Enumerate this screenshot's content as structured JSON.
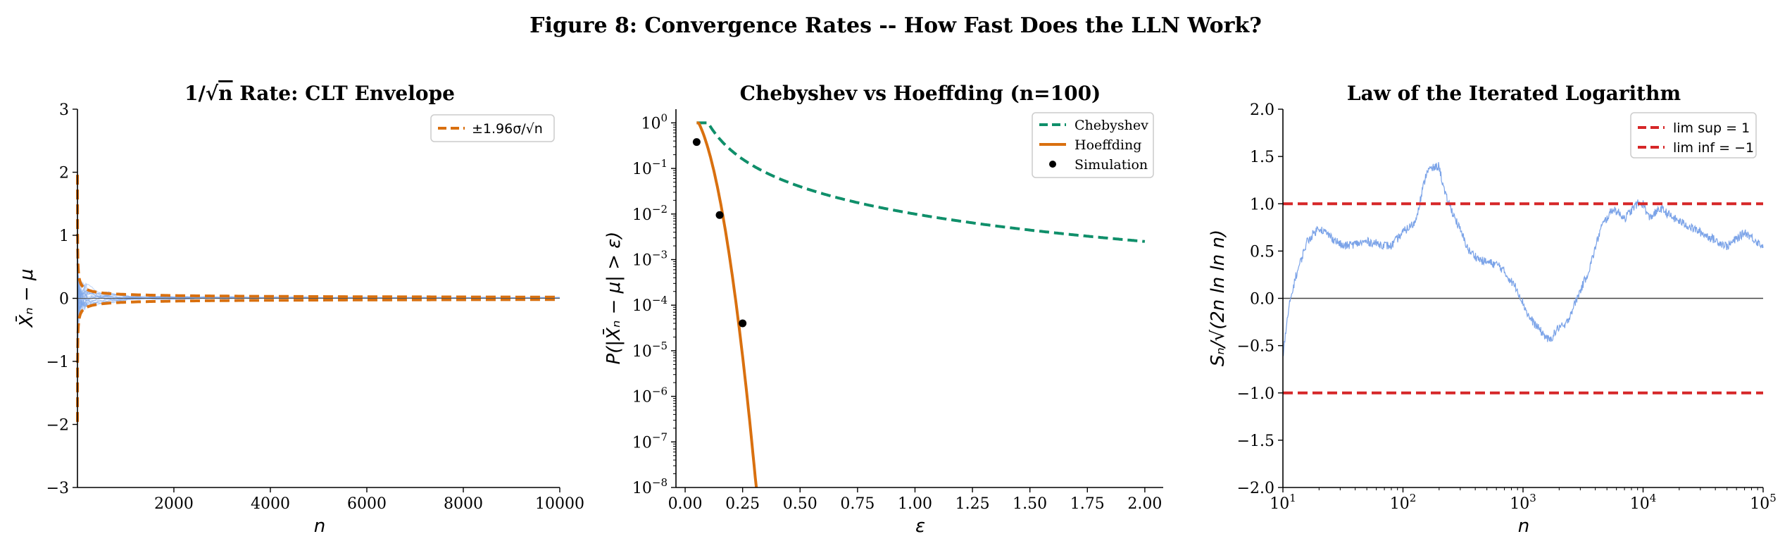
{
  "figure_title": "Figure 8: Convergence Rates -- How Fast Does the LLN Work?",
  "colors": {
    "envelope": "#d9700f",
    "paths": "#7ba3e8",
    "chebyshev": "#0f8f6a",
    "hoeffding": "#d9700f",
    "simulation": "#000000",
    "lil_bounds": "#d62728",
    "lil_path": "#7ba3e8",
    "zero_line": "#444444"
  },
  "chart_data": [
    {
      "type": "line",
      "title_parts": {
        "pre": "1/",
        "sqrt": "√",
        "over": "n",
        "post": " Rate: CLT Envelope"
      },
      "xlabel": "n",
      "ylabel": "X̄ₙ − μ",
      "xlim": [
        1,
        10000
      ],
      "ylim": [
        -3,
        3
      ],
      "xticks": [
        2000,
        4000,
        6000,
        8000,
        10000
      ],
      "xtick_labels": [
        "2000",
        "4000",
        "6000",
        "8000",
        "10000"
      ],
      "yticks": [
        -3,
        -2,
        -1,
        0,
        1,
        2,
        3
      ],
      "ytick_labels": [
        "−3",
        "−2",
        "−1",
        "0",
        "1",
        "2",
        "3"
      ],
      "legend": {
        "position": "top-right",
        "entries": [
          "±1.96σ/√n"
        ]
      },
      "envelope": {
        "name": "±1.96σ/√n",
        "sigma": 1,
        "z": 1.96
      },
      "sample_paths": {
        "count": 20
      }
    },
    {
      "type": "line",
      "title": "Chebyshev vs Hoeffding (n=100)",
      "xlabel": "ε",
      "ylabel": "P(|X̄ₙ − μ| > ε)",
      "xlim": [
        -0.04,
        2.08
      ],
      "ylim_log10": [
        -8,
        0.3
      ],
      "yscale": "log",
      "xticks": [
        0,
        0.25,
        0.5,
        0.75,
        1,
        1.25,
        1.5,
        1.75,
        2
      ],
      "xtick_labels": [
        "0.00",
        "0.25",
        "0.50",
        "0.75",
        "1.00",
        "1.25",
        "1.50",
        "1.75",
        "2.00"
      ],
      "ytick_exponents": [
        0,
        -1,
        -2,
        -3,
        -4,
        -5,
        -6,
        -7,
        -8
      ],
      "ytick_base": "10",
      "legend": {
        "position": "top-right",
        "entries": [
          "Chebyshev",
          "Hoeffding",
          "Simulation"
        ]
      },
      "series": [
        {
          "name": "Chebyshev",
          "formula": "min(1, 1/(n·ε²))",
          "n": 100,
          "x_range": [
            0.05,
            2.0
          ]
        },
        {
          "name": "Hoeffding",
          "formula": "min(1, 2·exp(−2·n·ε²))",
          "n": 100,
          "x_range": [
            0.05,
            2.0
          ]
        },
        {
          "name": "Simulation",
          "x": [
            0.05,
            0.15,
            0.25
          ],
          "y": [
            0.38,
            0.0095,
            4e-05
          ]
        }
      ]
    },
    {
      "type": "line",
      "title": "Law of the Iterated Logarithm",
      "xlabel": "n",
      "ylabel": "Sₙ/√(2n ln ln n)",
      "xscale": "log",
      "xlim": [
        10,
        100000
      ],
      "ylim": [
        -2,
        2
      ],
      "xtick_exponents": [
        1,
        2,
        3,
        4,
        5
      ],
      "xtick_base": "10",
      "yticks": [
        -2,
        -1.5,
        -1,
        -0.5,
        0,
        0.5,
        1,
        1.5,
        2
      ],
      "ytick_labels": [
        "−2.0",
        "−1.5",
        "−1.0",
        "−0.5",
        "0.0",
        "0.5",
        "1.0",
        "1.5",
        "2.0"
      ],
      "legend": {
        "position": "top-right",
        "entries": [
          "lim sup = 1",
          "lim inf = −1"
        ]
      },
      "series": [
        {
          "name": "lim sup = 1",
          "y": 1
        },
        {
          "name": "lim inf = −1",
          "y": -1
        },
        {
          "path_keypoints": {
            "log10n": [
              1.0,
              1.05,
              1.1,
              1.2,
              1.3,
              1.5,
              1.7,
              1.9,
              2.0,
              2.1,
              2.2,
              2.3,
              2.35,
              2.45,
              2.55,
              2.65,
              2.8,
              2.95,
              3.05,
              3.15,
              3.22,
              3.3,
              3.35,
              3.45,
              3.55,
              3.65,
              3.75,
              3.85,
              3.95,
              4.0,
              4.05,
              4.15,
              4.25,
              4.4,
              4.55,
              4.7,
              4.85,
              5.0
            ],
            "y": [
              -0.6,
              -0.1,
              0.2,
              0.6,
              0.75,
              0.55,
              0.6,
              0.55,
              0.7,
              0.8,
              1.35,
              1.4,
              1.1,
              0.8,
              0.5,
              0.4,
              0.35,
              0.1,
              -0.2,
              -0.35,
              -0.45,
              -0.3,
              -0.3,
              0.0,
              0.3,
              0.75,
              0.95,
              0.85,
              1.0,
              1.0,
              0.85,
              0.95,
              0.85,
              0.75,
              0.65,
              0.55,
              0.7,
              0.55
            ]
          }
        }
      ]
    }
  ]
}
